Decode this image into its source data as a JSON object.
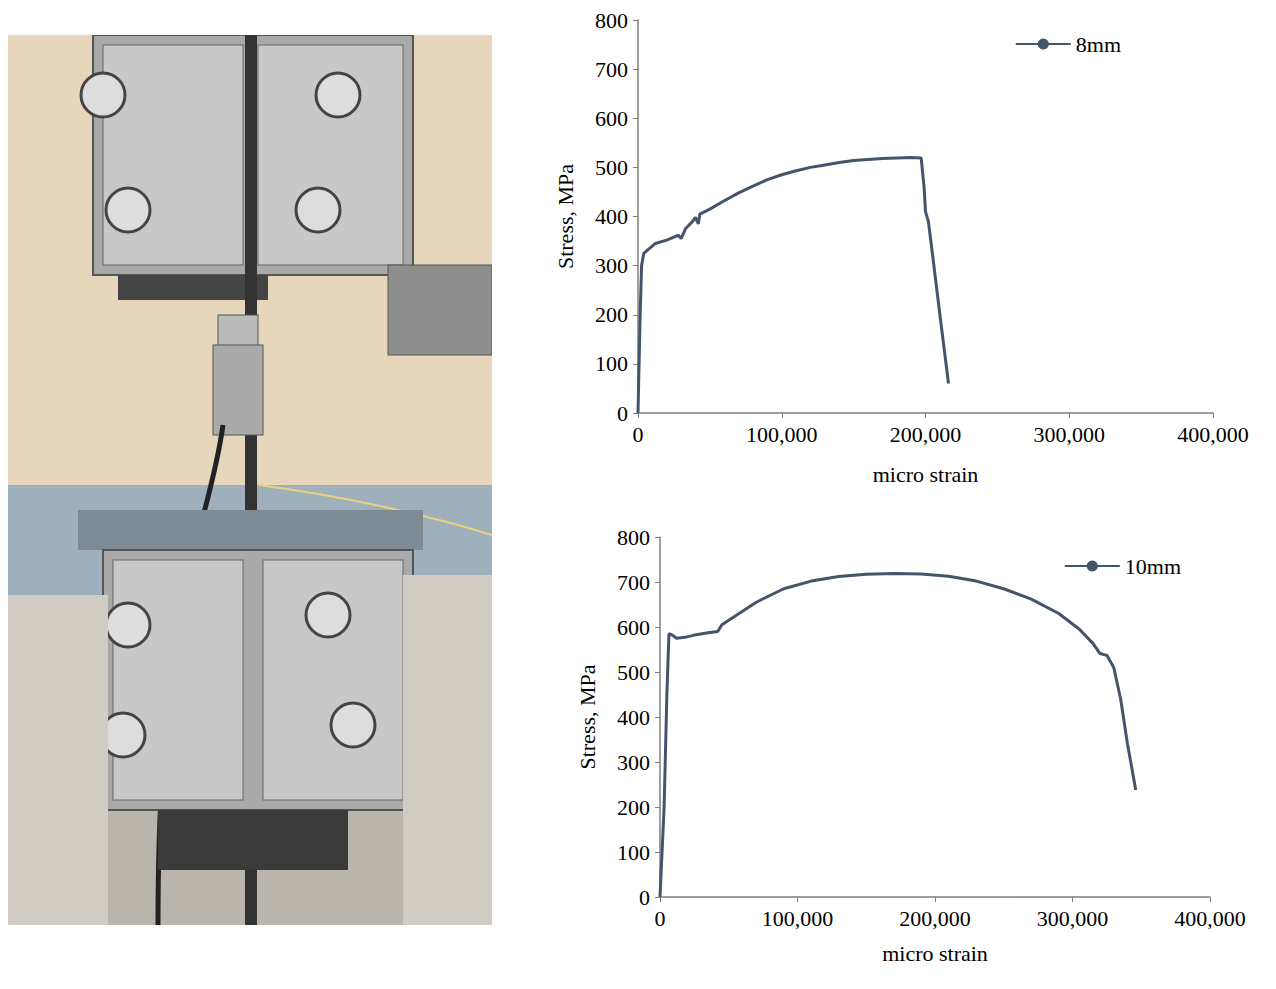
{
  "chart_data": [
    {
      "type": "line",
      "xlabel": "micro strain",
      "ylabel": "Stress, MPa",
      "x": [
        0,
        1500,
        2500,
        4000,
        8000,
        12000,
        20000,
        25000,
        28000,
        30000,
        33000,
        38000,
        40000,
        42000,
        43000,
        50000,
        60000,
        70000,
        80000,
        90000,
        100000,
        110000,
        120000,
        130000,
        140000,
        150000,
        160000,
        170000,
        180000,
        190000,
        197000,
        199000,
        200000,
        202000,
        205000,
        210000,
        216000
      ],
      "series": [
        {
          "name": "8mm",
          "color": "#44546a",
          "values": [
            0,
            200,
            300,
            325,
            335,
            345,
            352,
            358,
            362,
            355,
            375,
            390,
            398,
            385,
            405,
            415,
            432,
            448,
            462,
            475,
            485,
            493,
            500,
            505,
            510,
            514,
            516,
            518,
            519,
            520,
            519,
            460,
            410,
            390,
            320,
            200,
            60
          ]
        }
      ],
      "xlim": [
        0,
        400000
      ],
      "xticks": [
        0,
        100000,
        200000,
        300000,
        400000
      ],
      "ylim": [
        0,
        800
      ],
      "yticks": [
        0,
        100,
        200,
        300,
        400,
        500,
        600,
        700,
        800
      ],
      "grid": false,
      "legend": "upper right"
    },
    {
      "type": "line",
      "xlabel": "micro strain",
      "ylabel": "Stress, MPa",
      "x": [
        0,
        3000,
        5000,
        6500,
        9000,
        12000,
        18000,
        25000,
        35000,
        42000,
        45000,
        55000,
        70000,
        90000,
        110000,
        130000,
        150000,
        170000,
        190000,
        210000,
        230000,
        250000,
        270000,
        290000,
        305000,
        315000,
        320000,
        325000,
        330000,
        335000,
        340000,
        346000
      ],
      "series": [
        {
          "name": "10mm",
          "color": "#44546a",
          "values": [
            0,
            200,
            450,
            585,
            582,
            575,
            577,
            582,
            587,
            590,
            605,
            625,
            655,
            685,
            702,
            712,
            717,
            719,
            718,
            713,
            702,
            685,
            662,
            630,
            595,
            563,
            541,
            537,
            510,
            440,
            340,
            238
          ]
        }
      ],
      "xlim": [
        0,
        400000
      ],
      "xticks": [
        0,
        100000,
        200000,
        300000,
        400000
      ],
      "ylim": [
        0,
        800
      ],
      "yticks": [
        0,
        100,
        200,
        300,
        400,
        500,
        600,
        700,
        800
      ],
      "grid": false,
      "legend": "upper right"
    }
  ]
}
